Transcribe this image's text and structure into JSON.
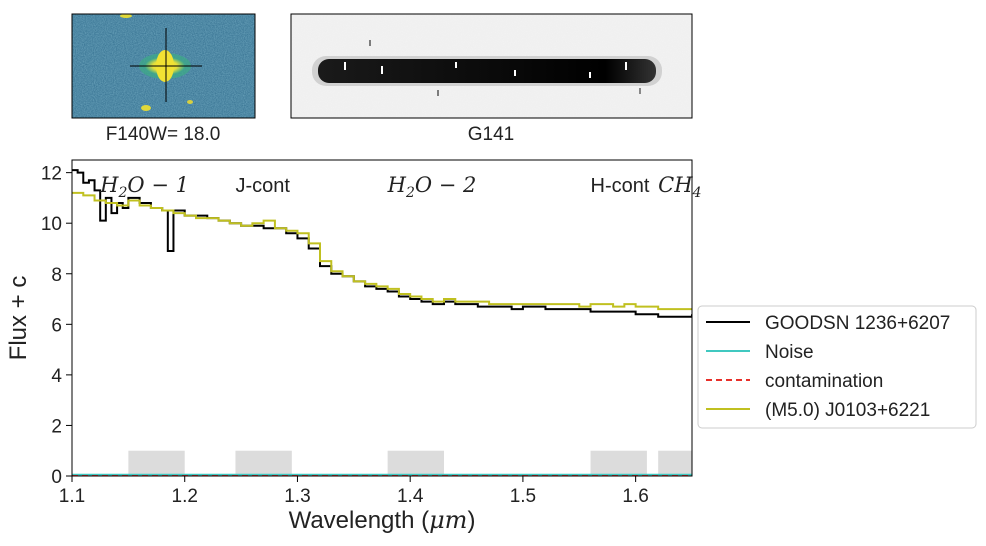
{
  "thumbnail": {
    "label": "F140W= 18.0",
    "colors": {
      "background": "#2f6b8c",
      "source": "#f2e233",
      "halo": "#3ea88a"
    }
  },
  "spectrum2d": {
    "label": "G141"
  },
  "chart_data": {
    "type": "line",
    "xlabel": "Wavelength (",
    "xlabel_unit": "μm",
    "xlabel_close": ")",
    "ylabel": "Flux + c",
    "xlim": [
      1.1,
      1.65
    ],
    "ylim": [
      0,
      12.5
    ],
    "xticks": [
      "1.1",
      "1.2",
      "1.3",
      "1.4",
      "1.5",
      "1.6"
    ],
    "xtick_values": [
      1.1,
      1.2,
      1.3,
      1.4,
      1.5,
      1.6
    ],
    "yticks": [
      "0",
      "2",
      "4",
      "6",
      "8",
      "10",
      "12"
    ],
    "ytick_values": [
      0,
      2,
      4,
      6,
      8,
      10,
      12
    ],
    "grid": false,
    "legend_placement": "right",
    "features": [
      {
        "x": 1.125,
        "text": "H",
        "sub": "2",
        "rest": "O − 1",
        "italic": true
      },
      {
        "x": 1.245,
        "text": "J-cont",
        "italic": false
      },
      {
        "x": 1.38,
        "text": "H",
        "sub": "2",
        "rest": "O − 2",
        "italic": true
      },
      {
        "x": 1.56,
        "text": "H-cont",
        "italic": false
      },
      {
        "x": 1.62,
        "text": "CH",
        "sub": "4",
        "rest": "",
        "italic": true
      }
    ],
    "bands": [
      [
        1.15,
        1.2
      ],
      [
        1.245,
        1.295
      ],
      [
        1.38,
        1.43
      ],
      [
        1.56,
        1.61
      ],
      [
        1.62,
        1.65
      ]
    ],
    "band_height": 1.0,
    "series": [
      {
        "name": "GOODSN 1236+6207",
        "style": "solid",
        "color": "#000000",
        "x": [
          1.1,
          1.105,
          1.11,
          1.115,
          1.12,
          1.125,
          1.13,
          1.135,
          1.14,
          1.145,
          1.15,
          1.16,
          1.17,
          1.18,
          1.185,
          1.19,
          1.2,
          1.21,
          1.22,
          1.23,
          1.24,
          1.25,
          1.26,
          1.27,
          1.28,
          1.29,
          1.3,
          1.31,
          1.32,
          1.33,
          1.34,
          1.35,
          1.36,
          1.37,
          1.38,
          1.39,
          1.4,
          1.41,
          1.42,
          1.43,
          1.44,
          1.45,
          1.46,
          1.47,
          1.48,
          1.49,
          1.5,
          1.51,
          1.52,
          1.53,
          1.54,
          1.55,
          1.56,
          1.57,
          1.58,
          1.59,
          1.6,
          1.61,
          1.62,
          1.63,
          1.64,
          1.65
        ],
        "y": [
          12.1,
          12.0,
          11.6,
          11.7,
          11.3,
          10.1,
          11.0,
          10.4,
          10.8,
          10.6,
          11.0,
          10.8,
          10.6,
          10.5,
          8.9,
          10.5,
          10.3,
          10.3,
          10.2,
          10.1,
          10.0,
          9.9,
          9.9,
          9.8,
          9.8,
          9.6,
          9.4,
          9.0,
          8.3,
          8.0,
          7.9,
          7.7,
          7.5,
          7.4,
          7.3,
          7.1,
          7.0,
          6.9,
          6.8,
          6.9,
          6.8,
          6.8,
          6.7,
          6.7,
          6.7,
          6.6,
          6.7,
          6.7,
          6.6,
          6.6,
          6.6,
          6.6,
          6.5,
          6.5,
          6.5,
          6.5,
          6.4,
          6.4,
          6.3,
          6.3,
          6.3,
          6.4
        ]
      },
      {
        "name": "Noise",
        "style": "solid",
        "color": "#40c8c0",
        "x": [
          1.1,
          1.2,
          1.3,
          1.4,
          1.5,
          1.6,
          1.65
        ],
        "y": [
          0.05,
          0.05,
          0.05,
          0.05,
          0.05,
          0.05,
          0.05
        ]
      },
      {
        "name": "contamination",
        "style": "dashed",
        "color": "#e8302a",
        "x": [
          1.1,
          1.65
        ],
        "y": [
          0.0,
          0.0
        ]
      },
      {
        "name": "(M5.0) J0103+6221",
        "style": "solid",
        "color": "#c0c020",
        "x": [
          1.1,
          1.11,
          1.12,
          1.13,
          1.14,
          1.15,
          1.16,
          1.17,
          1.18,
          1.19,
          1.2,
          1.21,
          1.22,
          1.23,
          1.24,
          1.25,
          1.26,
          1.27,
          1.28,
          1.29,
          1.3,
          1.31,
          1.32,
          1.33,
          1.34,
          1.35,
          1.36,
          1.37,
          1.38,
          1.39,
          1.4,
          1.41,
          1.42,
          1.43,
          1.44,
          1.45,
          1.46,
          1.47,
          1.48,
          1.49,
          1.5,
          1.51,
          1.52,
          1.53,
          1.54,
          1.55,
          1.56,
          1.57,
          1.58,
          1.59,
          1.6,
          1.61,
          1.62,
          1.63,
          1.64,
          1.65
        ],
        "y": [
          11.2,
          11.1,
          10.9,
          10.8,
          10.7,
          10.9,
          10.7,
          10.6,
          10.5,
          10.4,
          10.3,
          10.2,
          10.2,
          10.1,
          10.0,
          9.9,
          10.0,
          10.1,
          9.8,
          9.7,
          9.6,
          9.2,
          8.5,
          8.1,
          7.9,
          7.7,
          7.6,
          7.5,
          7.4,
          7.2,
          7.1,
          7.0,
          6.9,
          7.0,
          6.9,
          6.9,
          6.9,
          6.8,
          6.8,
          6.8,
          6.8,
          6.8,
          6.8,
          6.8,
          6.8,
          6.7,
          6.8,
          6.8,
          6.7,
          6.8,
          6.7,
          6.7,
          6.6,
          6.6,
          6.6,
          6.6
        ]
      }
    ]
  }
}
